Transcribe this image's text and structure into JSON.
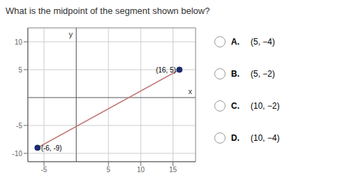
{
  "chart_data": {
    "type": "line",
    "title": "What is the midpoint of the segment shown below?",
    "x_label": "x",
    "y_label": "y",
    "x": [
      -6,
      16
    ],
    "values": [
      -9,
      5
    ],
    "color": "#c47a7a",
    "colors": [
      "#1a2e6e",
      "#1a2e6e"
    ],
    "marker": "circle",
    "xlim": [
      -7.5,
      18.5
    ],
    "ylim": [
      -11.5,
      12.5
    ],
    "xticks": [
      -5,
      5,
      10,
      15
    ],
    "yticks": [
      -10,
      -5,
      5,
      10
    ],
    "grid": true,
    "annotations": [
      {
        "text": "(-6, -9)",
        "x": -6,
        "y": -9
      },
      {
        "text": "(16, 5)",
        "x": 16,
        "y": 5
      }
    ],
    "choices": [
      {
        "label": "A.",
        "text": "(5, −4)"
      },
      {
        "label": "B.",
        "text": "(5, −2)"
      },
      {
        "label": "C.",
        "text": "(10, −2)"
      },
      {
        "label": "D.",
        "text": "(10, −4)"
      }
    ]
  }
}
